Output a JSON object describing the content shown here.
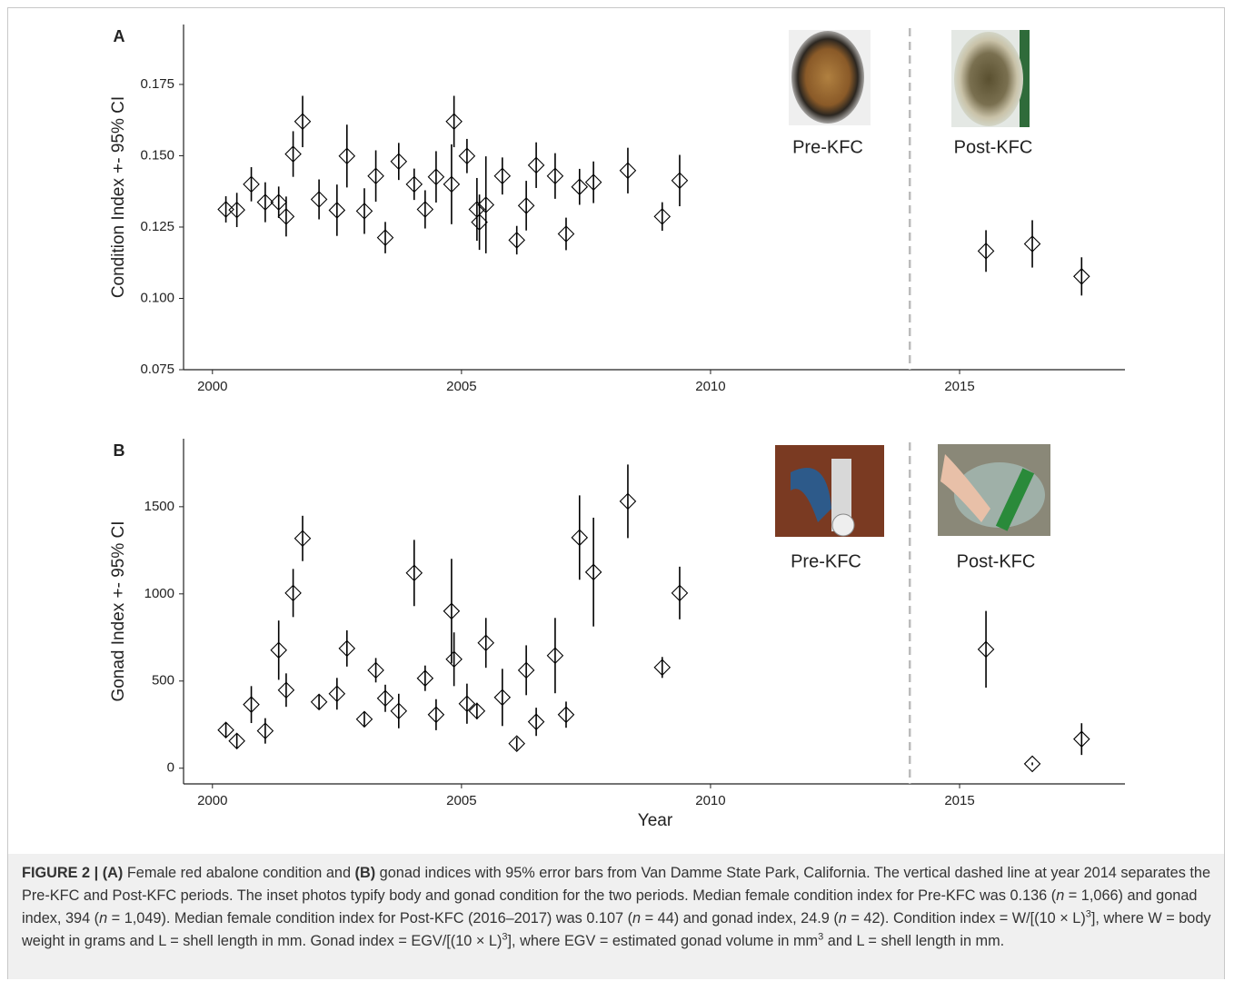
{
  "chart_data": [
    {
      "type": "scatter",
      "panel_label": "A",
      "y_label": "Condition Index +- 95% CI",
      "color": "#000000",
      "x": [
        2000.27,
        2000.49,
        2000.78,
        2001.06,
        2001.33,
        2001.48,
        2001.62,
        2001.81,
        2002.14,
        2002.5,
        2002.7,
        2003.05,
        2003.28,
        2003.47,
        2003.74,
        2004.05,
        2004.27,
        2004.49,
        2004.8,
        2004.85,
        2005.11,
        2005.31,
        2005.36,
        2005.49,
        2005.82,
        2006.11,
        2006.3,
        2006.5,
        2006.88,
        2007.1,
        2007.37,
        2007.65,
        2008.34,
        2009.03,
        2009.38,
        2015.53,
        2016.46,
        2017.45
      ],
      "values": [
        0.1312,
        0.131,
        0.14,
        0.1337,
        0.1337,
        0.1287,
        0.1506,
        0.162,
        0.1347,
        0.1309,
        0.1499,
        0.1306,
        0.1429,
        0.1213,
        0.148,
        0.14,
        0.1312,
        0.1426,
        0.14,
        0.162,
        0.1499,
        0.1312,
        0.1267,
        0.1328,
        0.1429,
        0.1204,
        0.1325,
        0.1467,
        0.1429,
        0.1226,
        0.1391,
        0.1407,
        0.1448,
        0.1287,
        0.1413,
        0.1166,
        0.1191,
        0.1077
      ],
      "errors": [
        0.0046,
        0.006,
        0.006,
        0.007,
        0.0055,
        0.007,
        0.008,
        0.009,
        0.007,
        0.009,
        0.011,
        0.008,
        0.009,
        0.0055,
        0.0065,
        0.0055,
        0.0067,
        0.009,
        0.014,
        0.009,
        0.006,
        0.011,
        0.0097,
        0.017,
        0.0065,
        0.005,
        0.0087,
        0.008,
        0.008,
        0.0057,
        0.0063,
        0.0073,
        0.008,
        0.005,
        0.009,
        0.0073,
        0.0083,
        0.0067
      ],
      "xlim": [
        1999.42,
        2018.32
      ],
      "xticks": [
        2000,
        2005,
        2010,
        2015
      ],
      "ylim": [
        0.075,
        0.196
      ],
      "yticks": [
        0.075,
        {
          "value": 0.1,
          "label": "0.100"
        },
        0.125,
        {
          "value": 0.15,
          "label": "0.150"
        },
        0.175
      ],
      "vline": 2014,
      "vline_color": "#bbbbbb",
      "annotations": [
        "Pre-KFC",
        "Post-KFC"
      ]
    },
    {
      "type": "scatter",
      "panel_label": "B",
      "y_label": "Gonad Index +- 95% CI",
      "x_label": "Year",
      "color": "#000000",
      "x": [
        2000.27,
        2000.49,
        2000.78,
        2001.06,
        2001.33,
        2001.48,
        2001.62,
        2001.81,
        2002.14,
        2002.5,
        2002.7,
        2003.05,
        2003.28,
        2003.47,
        2003.74,
        2004.05,
        2004.27,
        2004.49,
        2004.8,
        2004.85,
        2005.11,
        2005.31,
        2005.49,
        2005.82,
        2006.11,
        2006.3,
        2006.5,
        2006.88,
        2007.1,
        2007.37,
        2007.65,
        2008.34,
        2009.03,
        2009.38,
        2015.53,
        2016.46,
        2017.45
      ],
      "values": [
        219,
        156,
        365,
        214,
        677,
        448,
        1005,
        1318,
        380,
        427,
        687,
        281,
        562,
        401,
        328,
        1120,
        516,
        307,
        901,
        625,
        370,
        328,
        719,
        406,
        141,
        562,
        266,
        646,
        307,
        1323,
        1125,
        1531,
        578,
        1005,
        682,
        25,
        167
      ],
      "errors": [
        42,
        40,
        106,
        73,
        170,
        96,
        138,
        130,
        42,
        91,
        104,
        42,
        70,
        78,
        99,
        190,
        73,
        89,
        300,
        154,
        115,
        47,
        143,
        164,
        36,
        143,
        81,
        216,
        75,
        242,
        312,
        211,
        60,
        151,
        220,
        8,
        91
      ],
      "xlim": [
        1999.42,
        2018.32
      ],
      "xticks": [
        2000,
        2005,
        2010,
        2015
      ],
      "ylim": [
        -90,
        1890
      ],
      "yticks": [
        0,
        500,
        1000,
        1500
      ],
      "vline": 2014,
      "vline_color": "#bbbbbb",
      "annotations": [
        "Pre-KFC",
        "Post-KFC"
      ]
    }
  ],
  "caption": {
    "parts": [
      "FIGURE 2 | (A)",
      " Female red abalone condition and ",
      "(B)",
      " gonad indices with 95% error bars from Van Damme State Park, California. The vertical dashed line at year 2014 separates the Pre-KFC and Post-KFC periods. The inset photos typify body and gonad condition for the two periods. Median female condition index for Pre-KFC was 0.136 (",
      "n",
      " = 1,066) and gonad index, 394 (",
      "n",
      " = 1,049). Median female condition index for Post-KFC (2016–2017) was 0.107 (",
      "n",
      " = 44) and gonad index, 24.9 (",
      "n",
      " = 42). Condition index = W/[(10 × L)",
      "3",
      "], where W = body weight in grams and L = shell length in mm. Gonad index = EGV/[(10 × L)",
      "3",
      "], where EGV = estimated gonad volume in mm",
      "3",
      " and L = shell length in mm."
    ]
  }
}
